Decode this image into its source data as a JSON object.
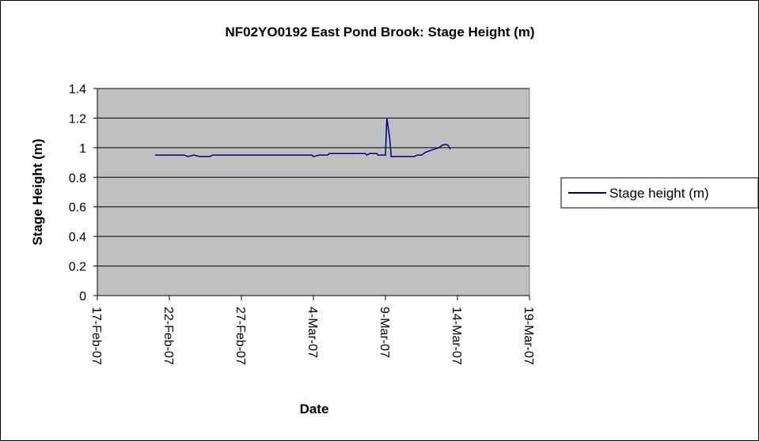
{
  "chart_data": {
    "type": "line",
    "title": "NF02YO0192 East Pond Brook: Stage Height (m)",
    "xlabel": "Date",
    "ylabel": "Stage Height (m)",
    "x_ticks": [
      "17-Feb-07",
      "22-Feb-07",
      "27-Feb-07",
      "4-Mar-07",
      "9-Mar-07",
      "14-Mar-07",
      "19-Mar-07"
    ],
    "y_ticks": [
      "0",
      "0.2",
      "0.4",
      "0.6",
      "0.8",
      "1",
      "1.2",
      "1.4"
    ],
    "xlim": [
      "2007-02-17",
      "2007-03-19"
    ],
    "ylim": [
      0,
      1.4
    ],
    "grid": true,
    "plot_background": "#c0c0c0",
    "legend_position": "right",
    "series": [
      {
        "name": "Stage height (m)",
        "color": "#000080",
        "points": [
          [
            "2007-02-21",
            0.95
          ],
          [
            "2007-02-23",
            0.95
          ],
          [
            "2007-02-23.3",
            0.94
          ],
          [
            "2007-02-23.7",
            0.95
          ],
          [
            "2007-02-24.1",
            0.94
          ],
          [
            "2007-02-24.8",
            0.94
          ],
          [
            "2007-02-25",
            0.95
          ],
          [
            "2007-03-03.9",
            0.95
          ],
          [
            "2007-03-04",
            0.94
          ],
          [
            "2007-03-04.4",
            0.95
          ],
          [
            "2007-03-05",
            0.95
          ],
          [
            "2007-03-05.1",
            0.96
          ],
          [
            "2007-03-07.6",
            0.96
          ],
          [
            "2007-03-07.7",
            0.95
          ],
          [
            "2007-03-07.9",
            0.96
          ],
          [
            "2007-03-08.4",
            0.96
          ],
          [
            "2007-03-08.5",
            0.95
          ],
          [
            "2007-03-09",
            0.95
          ],
          [
            "2007-03-09.1",
            1.2
          ],
          [
            "2007-03-09.3",
            1.06
          ],
          [
            "2007-03-09.4",
            0.94
          ],
          [
            "2007-03-11",
            0.94
          ],
          [
            "2007-03-11.2",
            0.95
          ],
          [
            "2007-03-11.5",
            0.95
          ],
          [
            "2007-03-11.8",
            0.97
          ],
          [
            "2007-03-12.1",
            0.98
          ],
          [
            "2007-03-12.4",
            0.99
          ],
          [
            "2007-03-12.7",
            1.0
          ],
          [
            "2007-03-13",
            1.02
          ],
          [
            "2007-03-13.3",
            1.02
          ],
          [
            "2007-03-13.4",
            1.01
          ],
          [
            "2007-03-13.5",
            0.99
          ]
        ]
      }
    ]
  }
}
